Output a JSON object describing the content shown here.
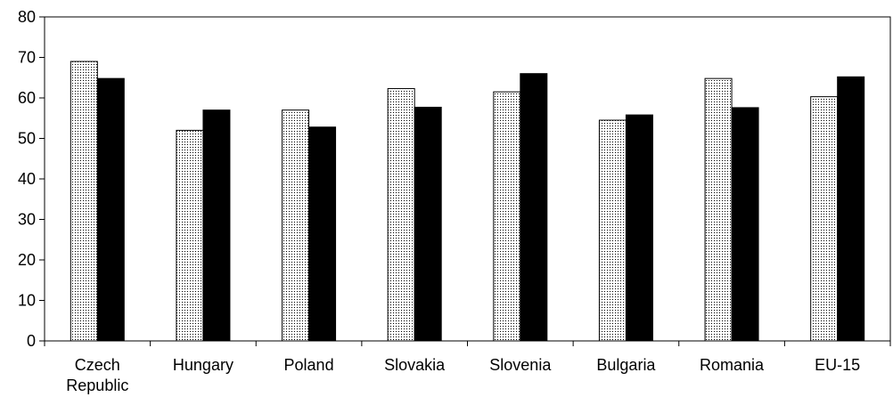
{
  "chart_data": {
    "type": "bar",
    "categories": [
      [
        "Czech",
        "Republic"
      ],
      [
        "Hungary"
      ],
      [
        "Poland"
      ],
      [
        "Slovakia"
      ],
      [
        "Slovenia"
      ],
      [
        "Bulgaria"
      ],
      [
        "Romania"
      ],
      [
        "EU-15"
      ]
    ],
    "series": [
      {
        "values": [
          69,
          52,
          57,
          62.3,
          61.5,
          54.5,
          64.8,
          60.3
        ],
        "fill": "dotted",
        "color": "#000000"
      },
      {
        "values": [
          64.8,
          57,
          52.8,
          57.7,
          66,
          55.8,
          57.6,
          65.2
        ],
        "fill": "solid",
        "color": "#000000"
      }
    ],
    "ylim": [
      0,
      80
    ],
    "yticks": [
      0,
      10,
      20,
      30,
      40,
      50,
      60,
      70,
      80
    ],
    "grid": false,
    "legend": "none"
  }
}
